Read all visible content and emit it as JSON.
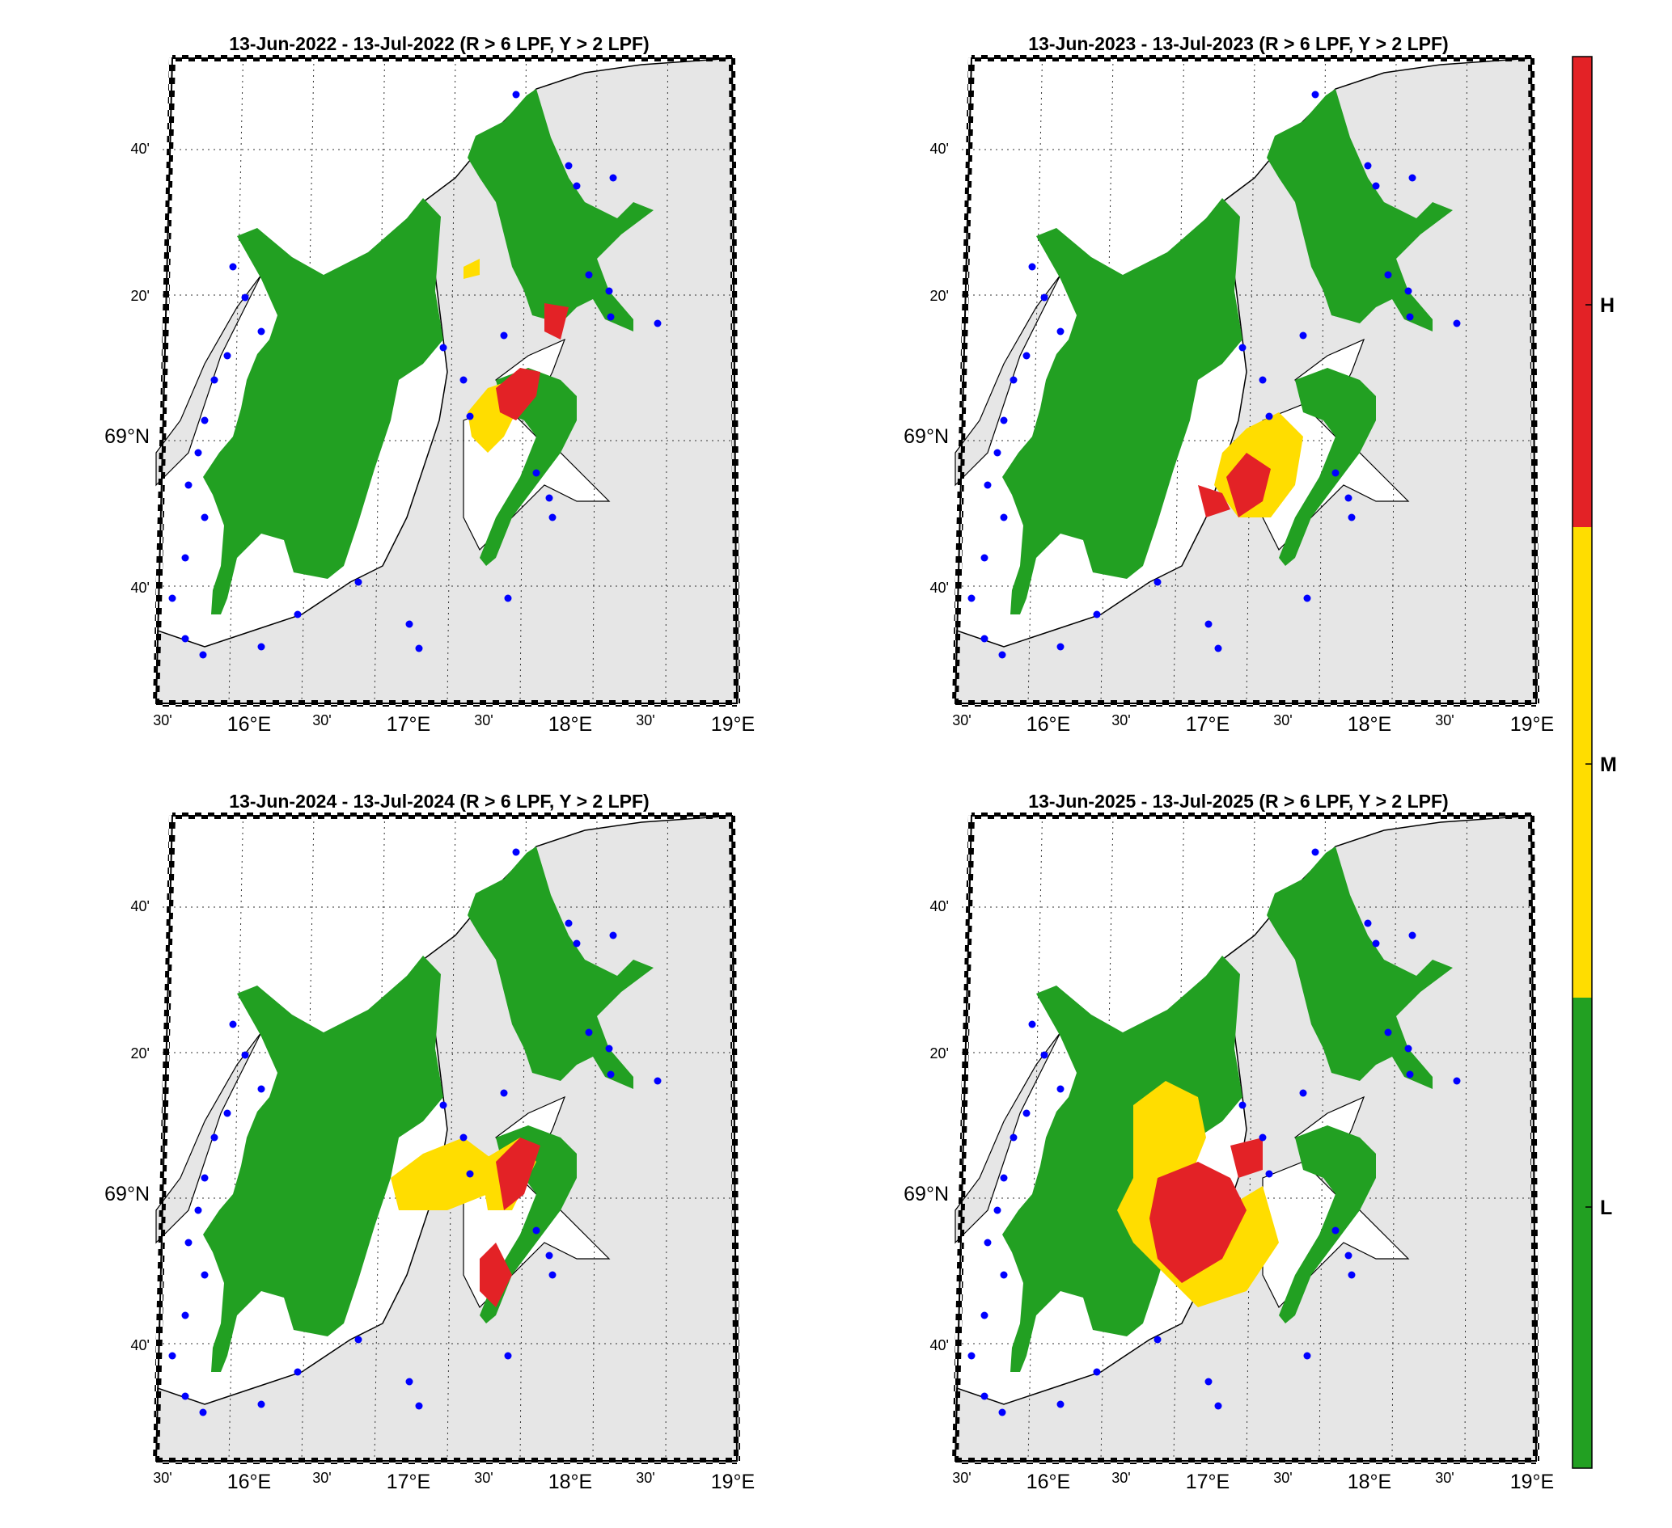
{
  "figure": {
    "panels": [
      {
        "title": "13-Jun-2022  - 13-Jul-2022  (R > 6 LPF, Y > 2 LPF)",
        "variant": "2022"
      },
      {
        "title": "13-Jun-2023  - 13-Jul-2023  (R > 6 LPF, Y > 2 LPF)",
        "variant": "2023"
      },
      {
        "title": "13-Jun-2024  - 13-Jul-2024  (R > 6 LPF, Y > 2 LPF)",
        "variant": "2024"
      },
      {
        "title": "13-Jun-2025  - 13-Jul-2025  (R > 6 LPF, Y > 2 LPF)",
        "variant": "2025"
      }
    ],
    "lat_labels": [
      "40'",
      "20'",
      "69°N",
      "40'"
    ],
    "lon_labels": [
      "30'",
      "16°E",
      "30'",
      "17°E",
      "30'",
      "18°E",
      "30'",
      "19°E"
    ],
    "colorbar": {
      "labels": [
        "H",
        "M",
        "L"
      ],
      "colors": {
        "high": "#e32226",
        "medium": "#ffdd00",
        "low": "#22a022"
      }
    },
    "map_colors": {
      "land": "#e6e6e6",
      "sea": "#ffffff",
      "coast": "#000000",
      "stations": "#0000ff"
    }
  }
}
